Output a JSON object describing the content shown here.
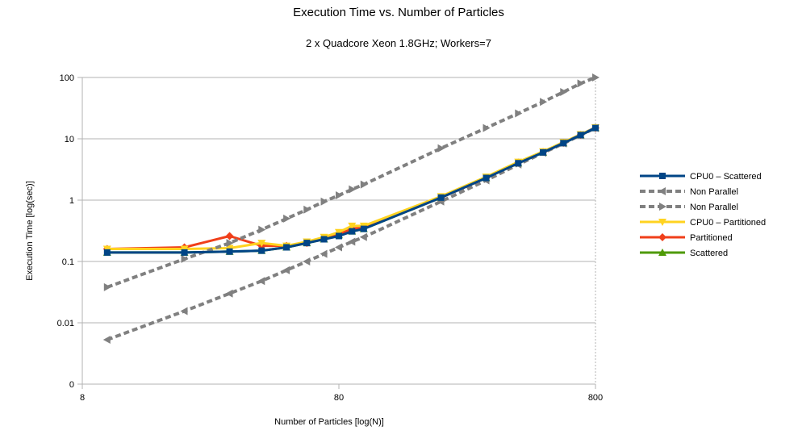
{
  "chart_data": {
    "type": "line",
    "title": "Execution Time vs. Number of Particles",
    "subtitle": "2 x Quadcore Xeon 1.8GHz; Workers=7",
    "xlabel": "Number of Particles [log(N)]",
    "ylabel": "Execution Time [log(sec)]",
    "x_scale": "log",
    "y_scale": "log",
    "xlim": [
      8,
      800
    ],
    "ylim": [
      0.001,
      100
    ],
    "x_ticks": [
      8,
      80,
      800
    ],
    "x_tick_labels": [
      "8",
      "80",
      "800"
    ],
    "y_ticks": [
      0.001,
      0.01,
      0.1,
      1,
      10,
      100
    ],
    "y_tick_labels": [
      "0",
      "0.01",
      "0.1",
      "1",
      "10",
      "100"
    ],
    "grid": "horizontal",
    "legend_position": "right",
    "series": [
      {
        "name": "Scattered",
        "color": "#4e9a06",
        "marker": "triangle-up",
        "dash": "solid",
        "x": [
          10,
          20,
          30,
          40,
          50,
          60,
          70,
          80,
          90,
          100,
          200,
          300,
          400,
          500,
          600,
          700,
          800
        ],
        "y": [
          0.14,
          0.14,
          0.145,
          0.15,
          0.17,
          0.2,
          0.23,
          0.27,
          0.31,
          0.34,
          1.1,
          2.3,
          4,
          6,
          8.5,
          11.5,
          15
        ]
      },
      {
        "name": "Partitioned",
        "color": "#f03f1a",
        "marker": "diamond",
        "dash": "solid",
        "x": [
          10,
          20,
          30,
          40,
          50,
          60,
          70,
          80,
          90,
          100,
          200,
          300,
          400,
          500,
          600,
          700,
          800
        ],
        "y": [
          0.16,
          0.17,
          0.26,
          0.18,
          0.18,
          0.2,
          0.24,
          0.28,
          0.34,
          0.36,
          1.1,
          2.3,
          4.1,
          6.1,
          8.6,
          11.6,
          15
        ]
      },
      {
        "name": "CPU0 – Partitioned",
        "color": "#ffd320",
        "marker": "triangle-down",
        "dash": "solid",
        "x": [
          10,
          20,
          30,
          40,
          50,
          60,
          70,
          80,
          90,
          100,
          200,
          300,
          400,
          500,
          600,
          700,
          800
        ],
        "y": [
          0.16,
          0.16,
          0.165,
          0.2,
          0.18,
          0.21,
          0.25,
          0.3,
          0.38,
          0.38,
          1.15,
          2.4,
          4.2,
          6.2,
          8.8,
          11.8,
          15.3
        ]
      },
      {
        "name": "Non Parallel",
        "color": "#808080",
        "marker": "triangle-right",
        "dash": "dashed",
        "x": [
          10,
          20,
          30,
          40,
          50,
          60,
          70,
          80,
          90,
          100,
          200,
          300,
          400,
          500,
          600,
          700,
          800
        ],
        "y": [
          0.038,
          0.11,
          0.2,
          0.33,
          0.5,
          0.7,
          0.95,
          1.2,
          1.5,
          1.8,
          7,
          15,
          26,
          40,
          58,
          80,
          100
        ]
      },
      {
        "name": "Non Parallel",
        "color": "#808080",
        "marker": "triangle-left",
        "dash": "dashed",
        "x": [
          10,
          20,
          30,
          40,
          50,
          60,
          70,
          80,
          90,
          100,
          200,
          300,
          400,
          500,
          600,
          700,
          800
        ],
        "y": [
          0.0053,
          0.0155,
          0.03,
          0.048,
          0.072,
          0.1,
          0.133,
          0.17,
          0.21,
          0.25,
          0.95,
          2.1,
          3.8,
          5.9,
          8.4,
          11.5,
          15
        ]
      },
      {
        "name": "CPU0 – Scattered",
        "color": "#004586",
        "marker": "square",
        "dash": "solid",
        "x": [
          10,
          20,
          30,
          40,
          50,
          60,
          70,
          80,
          90,
          100,
          200,
          300,
          400,
          500,
          600,
          700,
          800
        ],
        "y": [
          0.14,
          0.14,
          0.145,
          0.15,
          0.17,
          0.2,
          0.23,
          0.26,
          0.31,
          0.34,
          1.1,
          2.3,
          4,
          6,
          8.5,
          11.5,
          15
        ]
      }
    ],
    "legend_order": [
      5,
      4,
      3,
      2,
      1,
      0
    ]
  }
}
